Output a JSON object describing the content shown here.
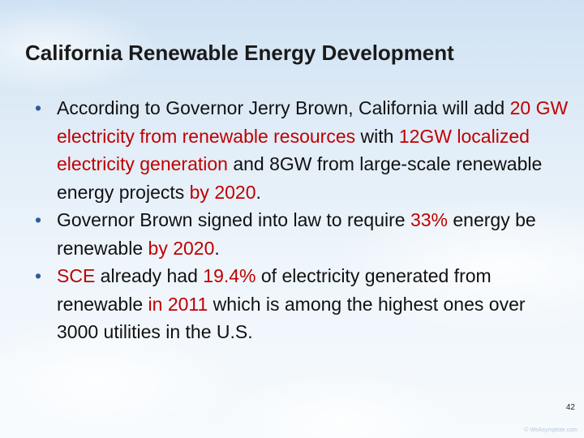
{
  "slide": {
    "title": "California Renewable Energy Development",
    "page_number": "42",
    "watermark": "© WeAsymptote.com"
  },
  "bullets": [
    {
      "segments": [
        {
          "text": "According to Governor Jerry Brown, California will add ",
          "hl": false
        },
        {
          "text": "20 GW electricity from renewable resources",
          "hl": true
        },
        {
          "text": " with ",
          "hl": false
        },
        {
          "text": "12GW localized electricity generation",
          "hl": true
        },
        {
          "text": " and 8GW from large-scale renewable energy projects ",
          "hl": false
        },
        {
          "text": "by 2020",
          "hl": true
        },
        {
          "text": ".",
          "hl": false
        }
      ]
    },
    {
      "segments": [
        {
          "text": "Governor Brown signed into law to require ",
          "hl": false
        },
        {
          "text": "33%",
          "hl": true
        },
        {
          "text": " energy be renewable ",
          "hl": false
        },
        {
          "text": "by 2020",
          "hl": true
        },
        {
          "text": ".",
          "hl": false
        }
      ]
    },
    {
      "segments": [
        {
          "text": "SCE",
          "hl": true
        },
        {
          "text": " already had ",
          "hl": false
        },
        {
          "text": "19.4%",
          "hl": true
        },
        {
          "text": " of electricity generated from renewable ",
          "hl": false
        },
        {
          "text": "in 2011",
          "hl": true
        },
        {
          "text": " which is among the highest ones over 3000 utilities in the U.S.",
          "hl": false
        }
      ]
    }
  ],
  "colors": {
    "highlight": "#c00000",
    "bullet_dot": "#2b5d9b",
    "text": "#111111"
  }
}
